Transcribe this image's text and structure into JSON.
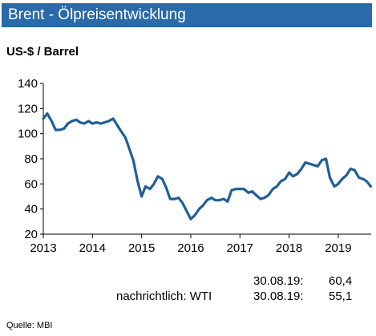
{
  "header": {
    "title": "Brent - Ölpreisentwicklung",
    "unit": "US-$ / Barrel"
  },
  "footer": {
    "brent_date": "30.08.19:",
    "brent_value": "60,4",
    "wti_label": "nachrichtlich: WTI",
    "wti_date": "30.08.19:",
    "wti_value": "55,1",
    "source": "Quelle:  MBI"
  },
  "chart_data": {
    "type": "line",
    "title": "Brent - Ölpreisentwicklung",
    "ylabel": "US-$ / Barrel",
    "xlabel": "",
    "xlim": [
      2013.0,
      2019.67
    ],
    "ylim": [
      20,
      140
    ],
    "y_ticks": [
      20,
      40,
      60,
      80,
      100,
      120,
      140
    ],
    "x_ticks": [
      2013,
      2014,
      2015,
      2016,
      2017,
      2018,
      2019
    ],
    "grid": false,
    "legend": "none",
    "color": "#1f5f99",
    "series": [
      {
        "x": [
          2013.0,
          2013.08,
          2013.17,
          2013.25,
          2013.33,
          2013.42,
          2013.5,
          2013.58,
          2013.67,
          2013.75,
          2013.83,
          2013.92,
          2014.0,
          2014.08,
          2014.17,
          2014.25,
          2014.33,
          2014.42,
          2014.5,
          2014.58,
          2014.67,
          2014.75,
          2014.83,
          2014.92,
          2015.0,
          2015.08,
          2015.17,
          2015.25,
          2015.33,
          2015.42,
          2015.5,
          2015.58,
          2015.67,
          2015.75,
          2015.83,
          2015.92,
          2016.0,
          2016.08,
          2016.17,
          2016.25,
          2016.33,
          2016.42,
          2016.5,
          2016.58,
          2016.67,
          2016.75,
          2016.83,
          2016.92,
          2017.0,
          2017.08,
          2017.17,
          2017.25,
          2017.33,
          2017.42,
          2017.5,
          2017.58,
          2017.67,
          2017.75,
          2017.83,
          2017.92,
          2018.0,
          2018.08,
          2018.17,
          2018.25,
          2018.33,
          2018.42,
          2018.5,
          2018.58,
          2018.67,
          2018.75,
          2018.83,
          2018.92,
          2019.0,
          2019.08,
          2019.17,
          2019.25,
          2019.33,
          2019.42,
          2019.5,
          2019.58,
          2019.66
        ],
        "values": [
          112,
          116,
          110,
          103,
          103,
          104,
          108,
          110,
          111,
          109,
          108,
          110,
          108,
          109,
          108,
          109,
          110,
          112,
          107,
          102,
          97,
          88,
          79,
          62,
          50,
          58,
          56,
          60,
          66,
          64,
          57,
          48,
          48,
          49,
          45,
          38,
          32,
          35,
          40,
          43,
          47,
          49,
          47,
          47,
          48,
          46,
          55,
          56,
          56,
          56,
          53,
          54,
          51,
          48,
          49,
          51,
          56,
          58,
          62,
          64,
          69,
          66,
          68,
          72,
          77,
          76,
          75,
          74,
          79,
          80,
          65,
          58,
          60,
          64,
          67,
          72,
          71,
          65,
          64,
          62,
          58
        ]
      }
    ]
  }
}
